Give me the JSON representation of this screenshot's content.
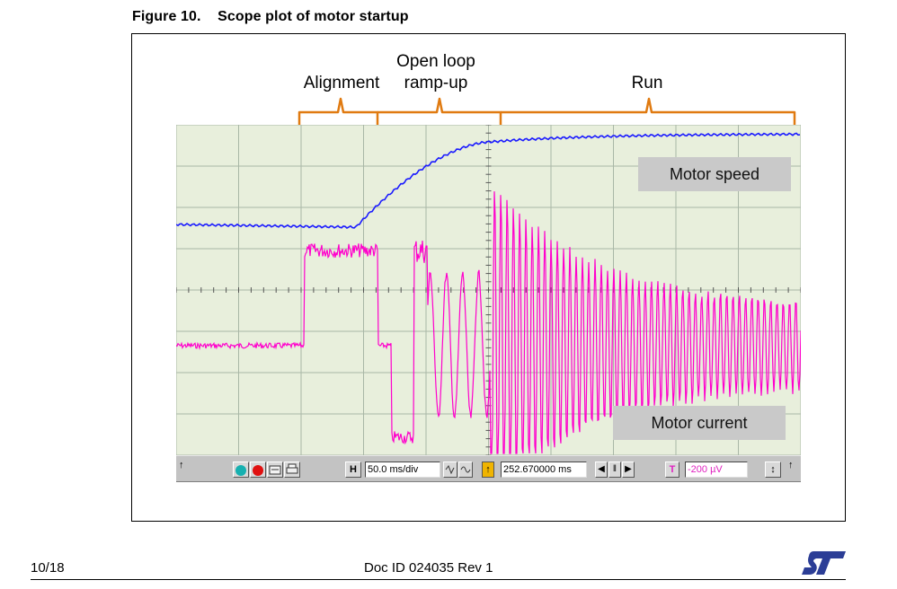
{
  "figure": {
    "number": "Figure 10.",
    "title": "Scope plot of motor startup"
  },
  "phases": {
    "alignment": "Alignment",
    "open_loop_line1": "Open loop",
    "open_loop_line2": "ramp-up",
    "run": "Run"
  },
  "traces": {
    "speed_label": "Motor speed",
    "current_label": "Motor current",
    "speed_color": "#1a1aff",
    "current_color": "#ff00cc",
    "background": "#e8efdc"
  },
  "toolbar": {
    "h_label": "H",
    "time_per_div": "50.0 ms/div",
    "position": "252.670000 ms",
    "t_label": "T",
    "trigger_level": "-200 µV",
    "pause_label": "‖",
    "prev_label": "◀",
    "next_label": "▶",
    "up_arrow": "↑",
    "down_arrow": "↓",
    "scroll_label": "↕"
  },
  "footer": {
    "page": "10/18",
    "doc_id": "Doc ID 024035 Rev 1",
    "logo_text": "ST"
  }
}
